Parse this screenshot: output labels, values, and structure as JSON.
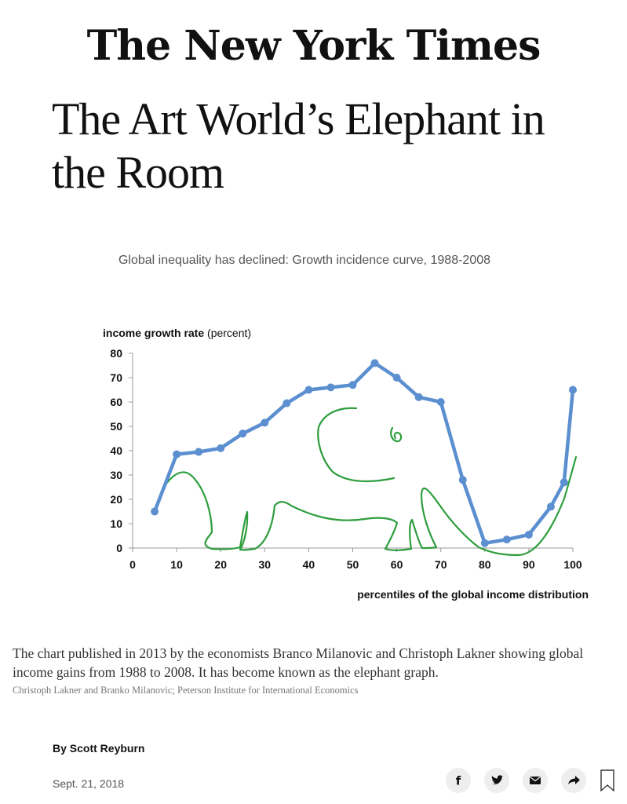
{
  "masthead": "The New York Times",
  "headline": "The Art World’s Elephant in the Room",
  "caption": "The chart published in 2013 by the economists Branco Milanovic and Christoph Lakner showing global income gains from 1988 to 2008. It has become known as the elephant graph.",
  "credit": "Christoph Lakner and Branko Milanovic; Peterson Institute for International Economics",
  "byline": "By Scott Reyburn",
  "date": "Sept. 21, 2018",
  "share_icons": [
    "facebook-icon",
    "twitter-icon",
    "email-icon",
    "share-icon",
    "bookmark-icon"
  ],
  "chart_data": {
    "type": "line",
    "title": "Global inequality has declined: Growth incidence curve, 1988-2008",
    "ylabel_bold": "income growth rate",
    "ylabel_rest": " (percent)",
    "xlabel": "percentiles of the global income distribution",
    "xlim": [
      0,
      100
    ],
    "ylim": [
      0,
      80
    ],
    "xticks": [
      "0",
      "10",
      "20",
      "30",
      "40",
      "50",
      "60",
      "70",
      "80",
      "90",
      "100"
    ],
    "yticks": [
      "0",
      "10",
      "20",
      "30",
      "40",
      "50",
      "60",
      "70",
      "80"
    ],
    "series": [
      {
        "color": "#5b8fd0",
        "x": [
          5,
          10,
          15,
          20,
          25,
          30,
          35,
          40,
          45,
          50,
          55,
          60,
          65,
          70,
          75,
          80,
          85,
          90,
          95,
          98,
          100
        ],
        "y": [
          15,
          38.5,
          39.5,
          41,
          47,
          51.5,
          59.5,
          65,
          66,
          67,
          76,
          70,
          62,
          60,
          28,
          2,
          3.5,
          5.5,
          17,
          27,
          65
        ]
      }
    ],
    "overlay_color": "#2e9e3e"
  }
}
